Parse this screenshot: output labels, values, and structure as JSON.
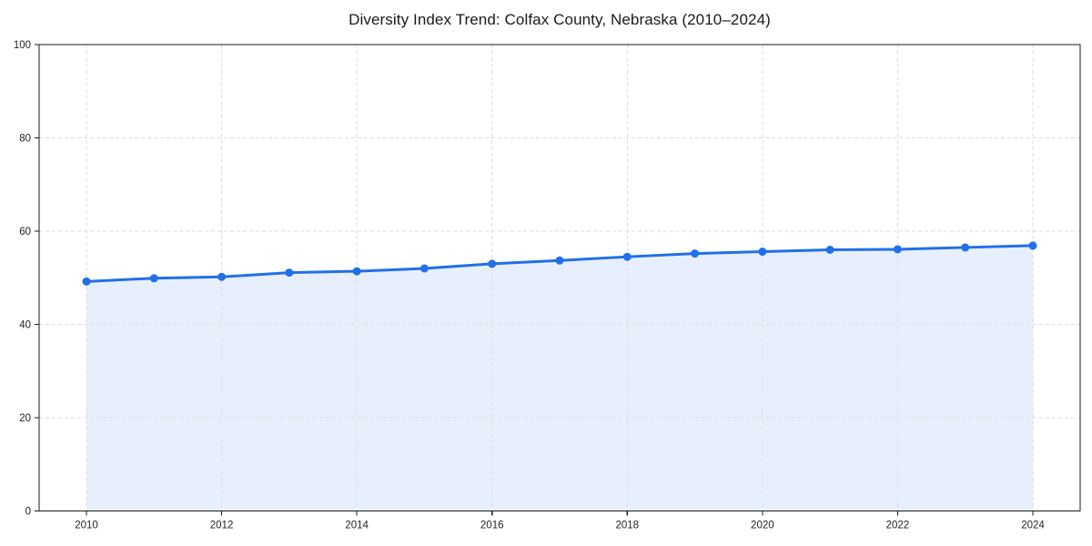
{
  "chart_data": {
    "type": "area",
    "title": "Diversity Index Trend: Colfax County, Nebraska (2010–2024)",
    "xlabel": "",
    "ylabel": "",
    "x": [
      2010,
      2011,
      2012,
      2013,
      2014,
      2015,
      2016,
      2017,
      2018,
      2019,
      2020,
      2021,
      2022,
      2023,
      2024
    ],
    "series": [
      {
        "name": "Diversity Index",
        "values": [
          49.2,
          49.9,
          50.2,
          51.1,
          51.4,
          52.0,
          53.0,
          53.7,
          54.5,
          55.2,
          55.6,
          56.0,
          56.1,
          56.5,
          56.9
        ]
      }
    ],
    "ylim": [
      0,
      100
    ],
    "yticks": [
      0,
      20,
      40,
      60,
      80,
      100
    ],
    "xticks": [
      2010,
      2012,
      2014,
      2016,
      2018,
      2020,
      2022,
      2024
    ],
    "x_margin_years": 0.7,
    "grid": "both-dashed",
    "legend_position": "none",
    "colors": {
      "line": "#2170e8",
      "marker": "#2170e8",
      "area_fill": "#e8effc",
      "grid": "#dddddd",
      "spine": "#1a1a1a",
      "tick": "#1a1a1a",
      "tick_label": "#222222",
      "title": "#1a1a1a",
      "background": "#ffffff"
    }
  }
}
